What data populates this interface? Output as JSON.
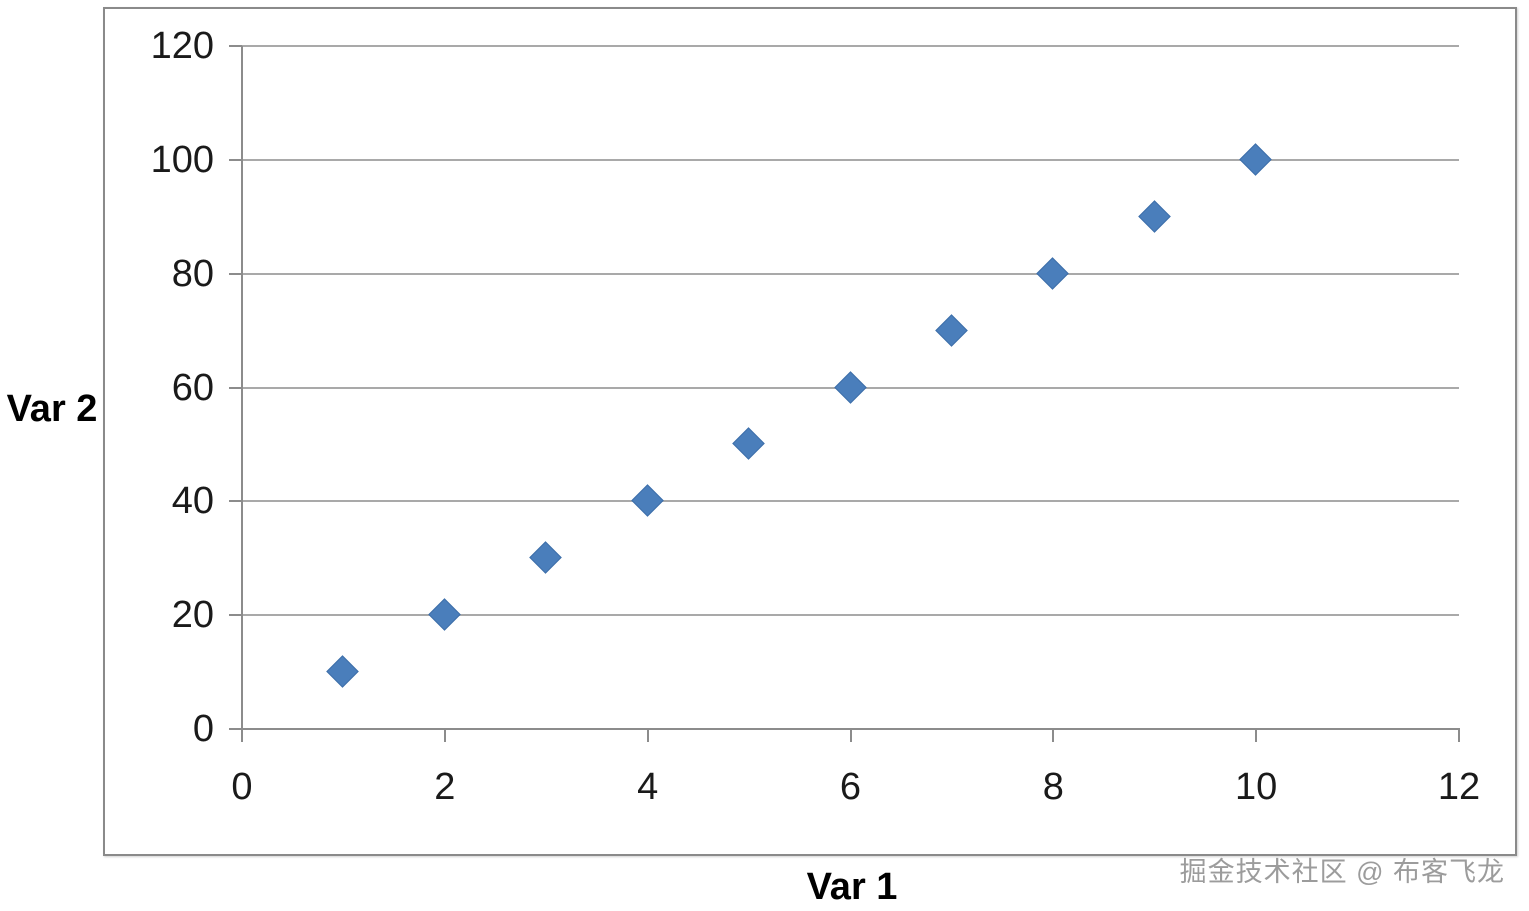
{
  "chart_data": {
    "type": "scatter",
    "title": "",
    "xlabel": "Var 1",
    "ylabel": "Var 2",
    "x": [
      1,
      2,
      3,
      4,
      5,
      6,
      7,
      8,
      9,
      10
    ],
    "y": [
      10,
      20,
      30,
      40,
      50,
      60,
      70,
      80,
      90,
      100
    ],
    "xlim": [
      0,
      12
    ],
    "ylim": [
      0,
      120
    ],
    "x_ticks": [
      0,
      2,
      4,
      6,
      8,
      10,
      12
    ],
    "y_ticks": [
      0,
      20,
      40,
      60,
      80,
      100,
      120
    ],
    "grid": "horizontal-only",
    "legend": "none",
    "marker": "diamond",
    "colors": {
      "marker": "#4a7ebb",
      "marker_edge": "#3d6ea9",
      "gridline": "#a9a9a9",
      "axis": "#8c8c8c",
      "frame_border": "#8a8a8a",
      "tick_text": "#1a1a1a",
      "watermark": "#9c9c9c"
    }
  },
  "watermark": {
    "text": "掘金技术社区 @ 布客飞龙"
  }
}
